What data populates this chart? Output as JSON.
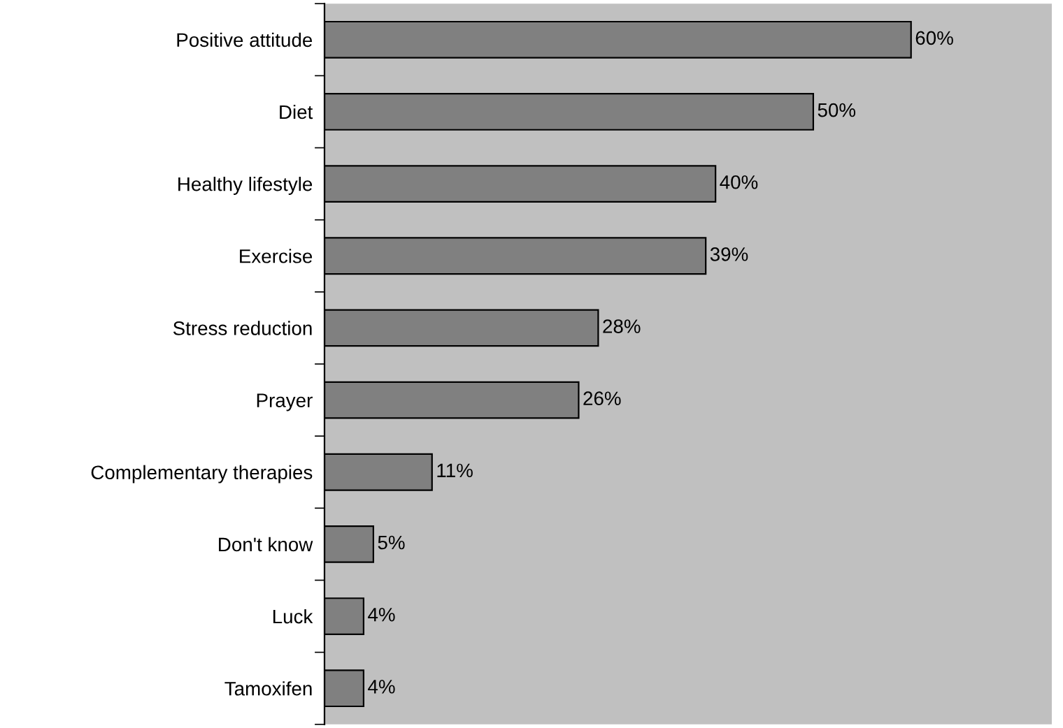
{
  "chart_data": {
    "type": "bar",
    "orientation": "horizontal",
    "categories": [
      "Positive attitude",
      "Diet",
      "Healthy lifestyle",
      "Exercise",
      "Stress reduction",
      "Prayer",
      "Complementary therapies",
      "Don't know",
      "Luck",
      "Tamoxifen"
    ],
    "values": [
      60,
      50,
      40,
      39,
      28,
      26,
      11,
      5,
      4,
      4
    ],
    "value_labels": [
      "60%",
      "50%",
      "40%",
      "39%",
      "28%",
      "26%",
      "11%",
      "5%",
      "4%",
      "4%"
    ],
    "color": "#808080",
    "grid": false,
    "legend": false
  }
}
